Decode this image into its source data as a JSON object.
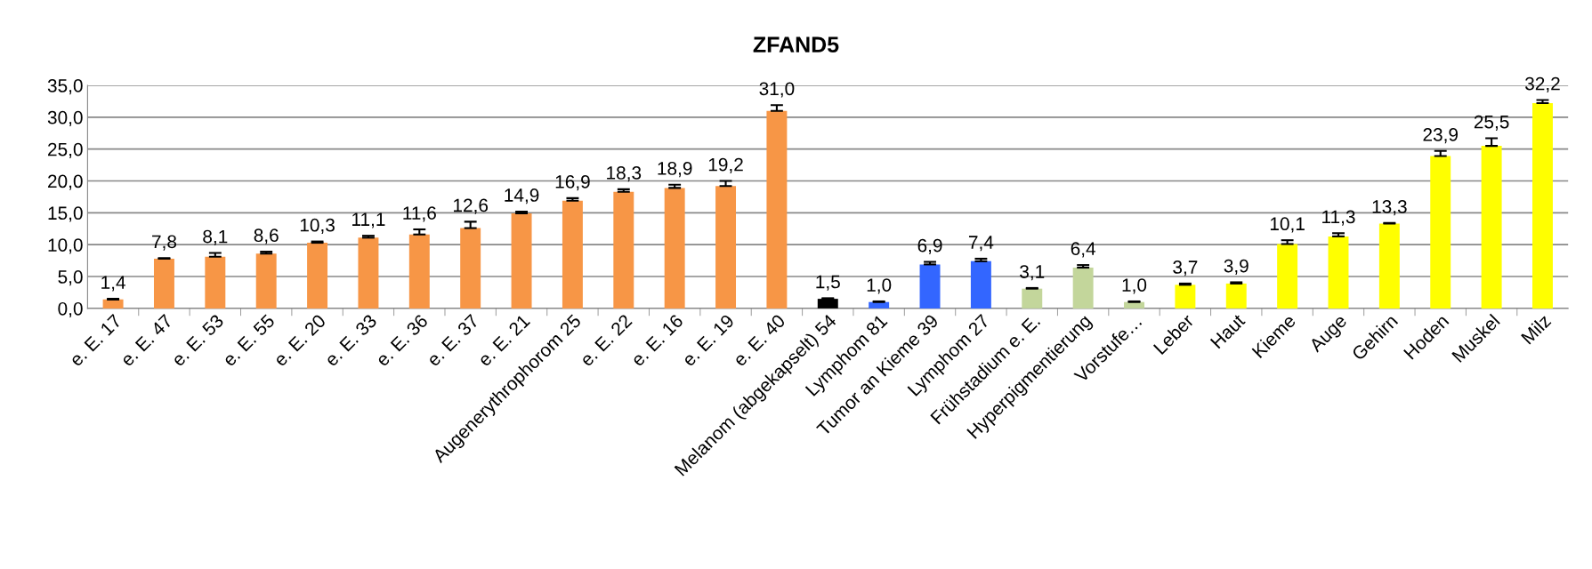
{
  "chart_data": {
    "type": "bar",
    "title": "ZFAND5",
    "categories": [
      "e. E. 17",
      "e. E. 47",
      "e. E. 53",
      "e. E. 55",
      "e. E. 20",
      "e. E. 33",
      "e. E. 36",
      "e. E. 37",
      "e. E. 21",
      "Augenerythrophorom 25",
      "e. E. 22",
      "e. E. 16",
      "e. E. 19",
      "e. E. 40",
      "Melanom (abgekapselt) 54",
      "Lymphom 81",
      "Tumor an Kieme 39",
      "Lymphom 27",
      "Frühstadium e. E.",
      "Hyperpigmentierung",
      "Vorstufe…",
      "Leber",
      "Haut",
      "Kieme",
      "Auge",
      "Gehirn",
      "Hoden",
      "Muskel",
      "Milz"
    ],
    "values": [
      1.4,
      7.8,
      8.1,
      8.6,
      10.3,
      11.1,
      11.6,
      12.6,
      14.9,
      16.9,
      18.3,
      18.9,
      19.2,
      31.0,
      1.5,
      1.0,
      6.9,
      7.4,
      3.1,
      6.4,
      1.0,
      3.7,
      3.9,
      10.1,
      11.3,
      13.3,
      23.9,
      25.5,
      32.2
    ],
    "value_labels": [
      "1,4",
      "7,8",
      "8,1",
      "8,6",
      "10,3",
      "11,1",
      "11,6",
      "12,6",
      "14,9",
      "16,9",
      "18,3",
      "18,9",
      "19,2",
      "31,0",
      "1,5",
      "1,0",
      "6,9",
      "7,4",
      "3,1",
      "6,4",
      "1,0",
      "3,7",
      "3,9",
      "10,1",
      "11,3",
      "13,3",
      "23,9",
      "25,5",
      "32,2"
    ],
    "errors": [
      [
        1.4,
        1.5
      ],
      [
        7.8,
        7.9
      ],
      [
        8.1,
        8.7
      ],
      [
        8.6,
        8.9
      ],
      [
        10.3,
        10.5
      ],
      [
        11.1,
        11.4
      ],
      [
        11.6,
        12.4
      ],
      [
        12.6,
        13.6
      ],
      [
        14.9,
        15.2
      ],
      [
        16.9,
        17.3
      ],
      [
        18.3,
        18.7
      ],
      [
        18.9,
        19.4
      ],
      [
        19.2,
        20.0
      ],
      [
        31.0,
        31.9
      ],
      [
        1.5,
        1.6
      ],
      [
        1.0,
        1.1
      ],
      [
        6.9,
        7.3
      ],
      [
        7.4,
        7.8
      ],
      [
        3.1,
        3.2
      ],
      [
        6.4,
        6.8
      ],
      [
        1.0,
        1.1
      ],
      [
        3.7,
        3.9
      ],
      [
        3.9,
        4.1
      ],
      [
        10.1,
        10.7
      ],
      [
        11.3,
        11.8
      ],
      [
        13.3,
        13.4
      ],
      [
        23.9,
        24.7
      ],
      [
        25.5,
        26.7
      ],
      [
        32.2,
        32.7
      ]
    ],
    "colors": [
      "#f79646",
      "#f79646",
      "#f79646",
      "#f79646",
      "#f79646",
      "#f79646",
      "#f79646",
      "#f79646",
      "#f79646",
      "#f79646",
      "#f79646",
      "#f79646",
      "#f79646",
      "#f79646",
      "#000000",
      "#3366ff",
      "#3366ff",
      "#3366ff",
      "#c3d69b",
      "#c3d69b",
      "#c3d69b",
      "#ffff00",
      "#ffff00",
      "#ffff00",
      "#ffff00",
      "#ffff00",
      "#ffff00",
      "#ffff00",
      "#ffff00"
    ],
    "ylim": [
      0,
      35
    ],
    "yticks": [
      {
        "value": 0,
        "label": "0,0"
      },
      {
        "value": 5,
        "label": "5,0"
      },
      {
        "value": 10,
        "label": "10,0"
      },
      {
        "value": 15,
        "label": "15,0"
      },
      {
        "value": 20,
        "label": "20,0"
      },
      {
        "value": 25,
        "label": "25,0"
      },
      {
        "value": 30,
        "label": "30,0"
      },
      {
        "value": 35,
        "label": "35,0"
      }
    ],
    "grid": "y",
    "legend": false
  }
}
